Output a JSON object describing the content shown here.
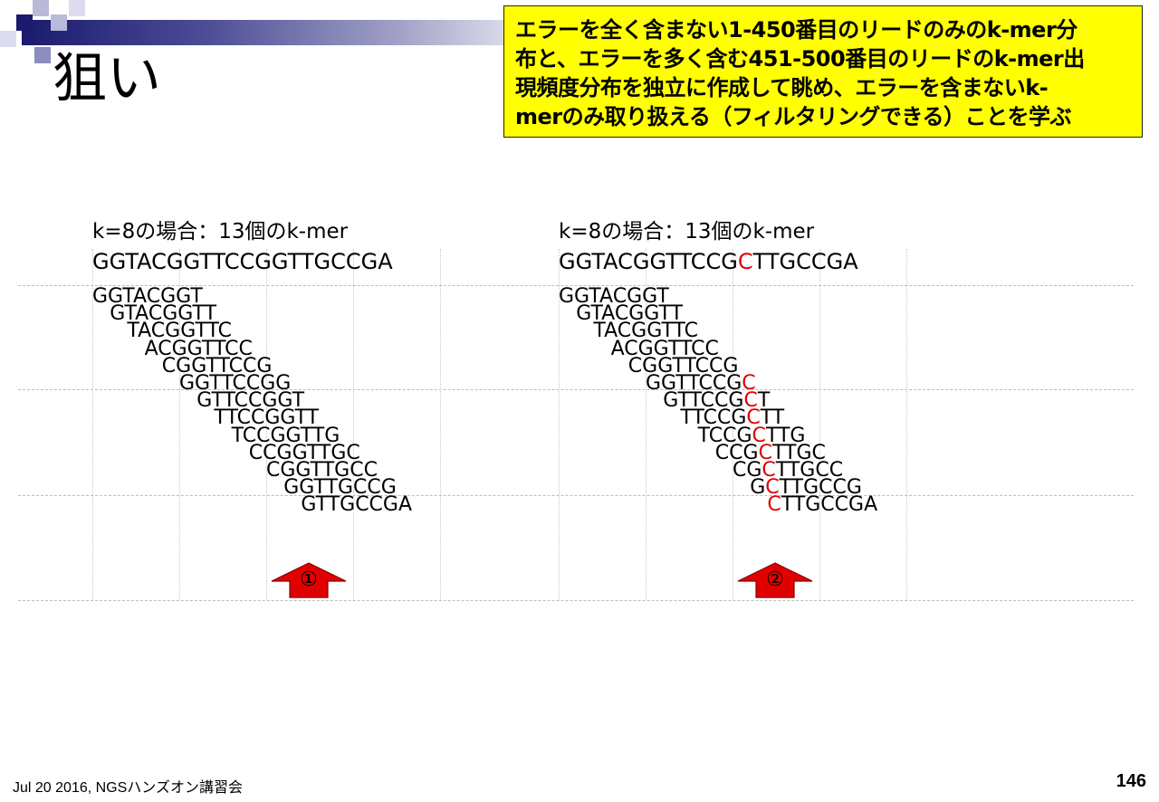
{
  "slide": {
    "title": "狙い",
    "note": "エラーを全く含まない1-450番目のリードのみのk-mer分\n布と、エラーを多く含む451-500番目のリードのk-mer出\n現頻度分布を独立に作成して眺め、エラーを含まないk-\nmerのみ取り扱える（フィルタリングできる）ことを学ぶ",
    "footer": "Jul 20 2016, NGSハンズオン講習会",
    "page_number": "146"
  },
  "panels": [
    {
      "heading": "k=8の場合：13個のk-mer",
      "sequence": "GGTACGGTTCCGGTTGCCGA",
      "kmers": [
        "GGTACGGT",
        "GTACGGTT",
        "TACGGTTC",
        "ACGGTTCC",
        "CGGTTCCG",
        "GGTTCCGG",
        "GTTCCGGT",
        "TTCCGGTT",
        "TCCGGTTG",
        "CCGGTTGC",
        "CGGTTGCC",
        "GGTTGCCG",
        "GTTGCCGA"
      ],
      "arrow_label": "①"
    },
    {
      "heading": "k=8の場合：13個のk-mer",
      "sequence": "GGTACGGTTCCGCTTGCCGA",
      "error_position": 12,
      "kmers": [
        "GGTACGGT",
        "GTACGGTT",
        "TACGGTTC",
        "ACGGTTCC",
        "CGGTTCCG",
        "GGTTCCGC",
        "GTTCCGCT",
        "TTCCGCTT",
        "TCCGCTTG",
        "CCGCTTGC",
        "CGCTTGCC",
        "GCTTGCCG",
        "CTTGCCGA"
      ],
      "arrow_label": "②"
    }
  ],
  "colors": {
    "note_background": "#ffff00",
    "error_base": "#e00000",
    "arrow": "#e00000",
    "header_bar": "#1a1a6e"
  }
}
